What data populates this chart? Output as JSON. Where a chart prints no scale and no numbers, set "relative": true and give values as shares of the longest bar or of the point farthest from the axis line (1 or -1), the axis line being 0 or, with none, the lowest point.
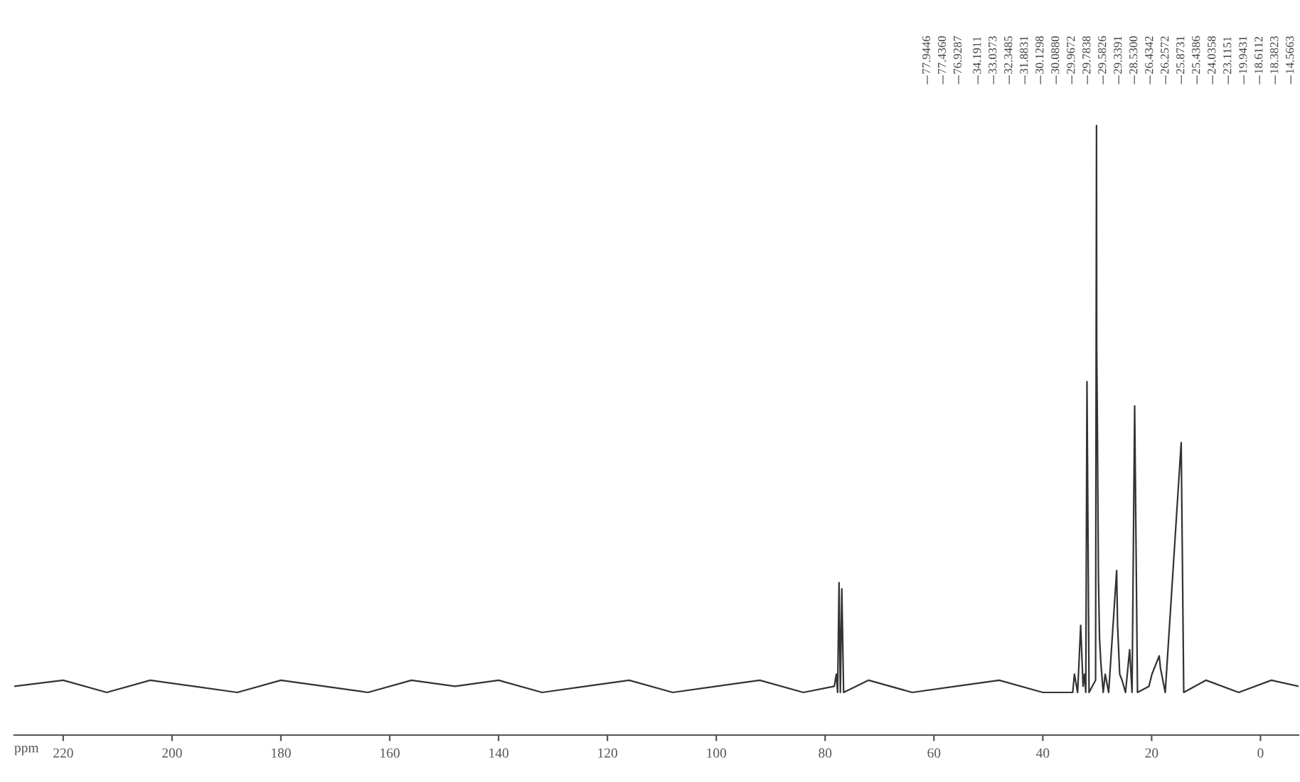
{
  "chart_data": {
    "type": "line",
    "relative": true,
    "xlabel": "ppm",
    "tick_labels": "x",
    "marker": "none",
    "line_style": "solid",
    "xlim": [
      229,
      -7
    ],
    "xticks": [
      220,
      200,
      180,
      160,
      140,
      120,
      100,
      80,
      60,
      40,
      20,
      0
    ],
    "x": [
      229,
      220,
      212,
      204,
      196,
      188,
      180,
      172,
      164,
      156,
      148,
      140,
      132,
      124,
      116,
      108,
      100,
      92,
      84,
      78.3,
      77.94,
      77.7,
      77.44,
      77.2,
      76.93,
      76.6,
      72,
      64,
      56,
      48,
      40,
      34.5,
      34.19,
      33.6,
      33.04,
      32.6,
      32.35,
      32.1,
      31.88,
      31.5,
      30.3,
      30.13,
      30.09,
      29.97,
      29.78,
      29.58,
      29.34,
      28.9,
      28.53,
      27.9,
      26.43,
      26.26,
      25.87,
      25.44,
      24.8,
      24.04,
      23.6,
      23.12,
      22.6,
      20.5,
      19.94,
      18.61,
      18.38,
      17.5,
      14.57,
      14.1,
      10,
      4,
      -2,
      -7
    ],
    "series": [
      {
        "color": "#333333",
        "values": [
          0.08,
          0.09,
          0.07,
          0.09,
          0.08,
          0.07,
          0.09,
          0.08,
          0.07,
          0.09,
          0.08,
          0.09,
          0.07,
          0.08,
          0.09,
          0.07,
          0.08,
          0.09,
          0.07,
          0.08,
          0.1,
          0.07,
          0.25,
          0.07,
          0.24,
          0.07,
          0.09,
          0.07,
          0.08,
          0.09,
          0.07,
          0.07,
          0.1,
          0.07,
          0.18,
          0.08,
          0.1,
          0.07,
          0.58,
          0.07,
          0.09,
          1.0,
          0.63,
          0.51,
          0.26,
          0.16,
          0.12,
          0.07,
          0.1,
          0.07,
          0.27,
          0.18,
          0.1,
          0.09,
          0.07,
          0.14,
          0.07,
          0.54,
          0.07,
          0.08,
          0.1,
          0.13,
          0.11,
          0.07,
          0.48,
          0.07,
          0.09,
          0.07,
          0.09,
          0.08
        ]
      }
    ],
    "annotations": [
      "77.9446",
      "77.4360",
      "76.9287",
      "34.1911",
      "33.0373",
      "32.3485",
      "31.8831",
      "30.1298",
      "30.0880",
      "29.9672",
      "29.7838",
      "29.5826",
      "29.3391",
      "28.5300",
      "26.4342",
      "26.2572",
      "25.8731",
      "25.4386",
      "24.0358",
      "23.1151",
      "19.9431",
      "18.6112",
      "18.3823",
      "14.5663"
    ]
  }
}
